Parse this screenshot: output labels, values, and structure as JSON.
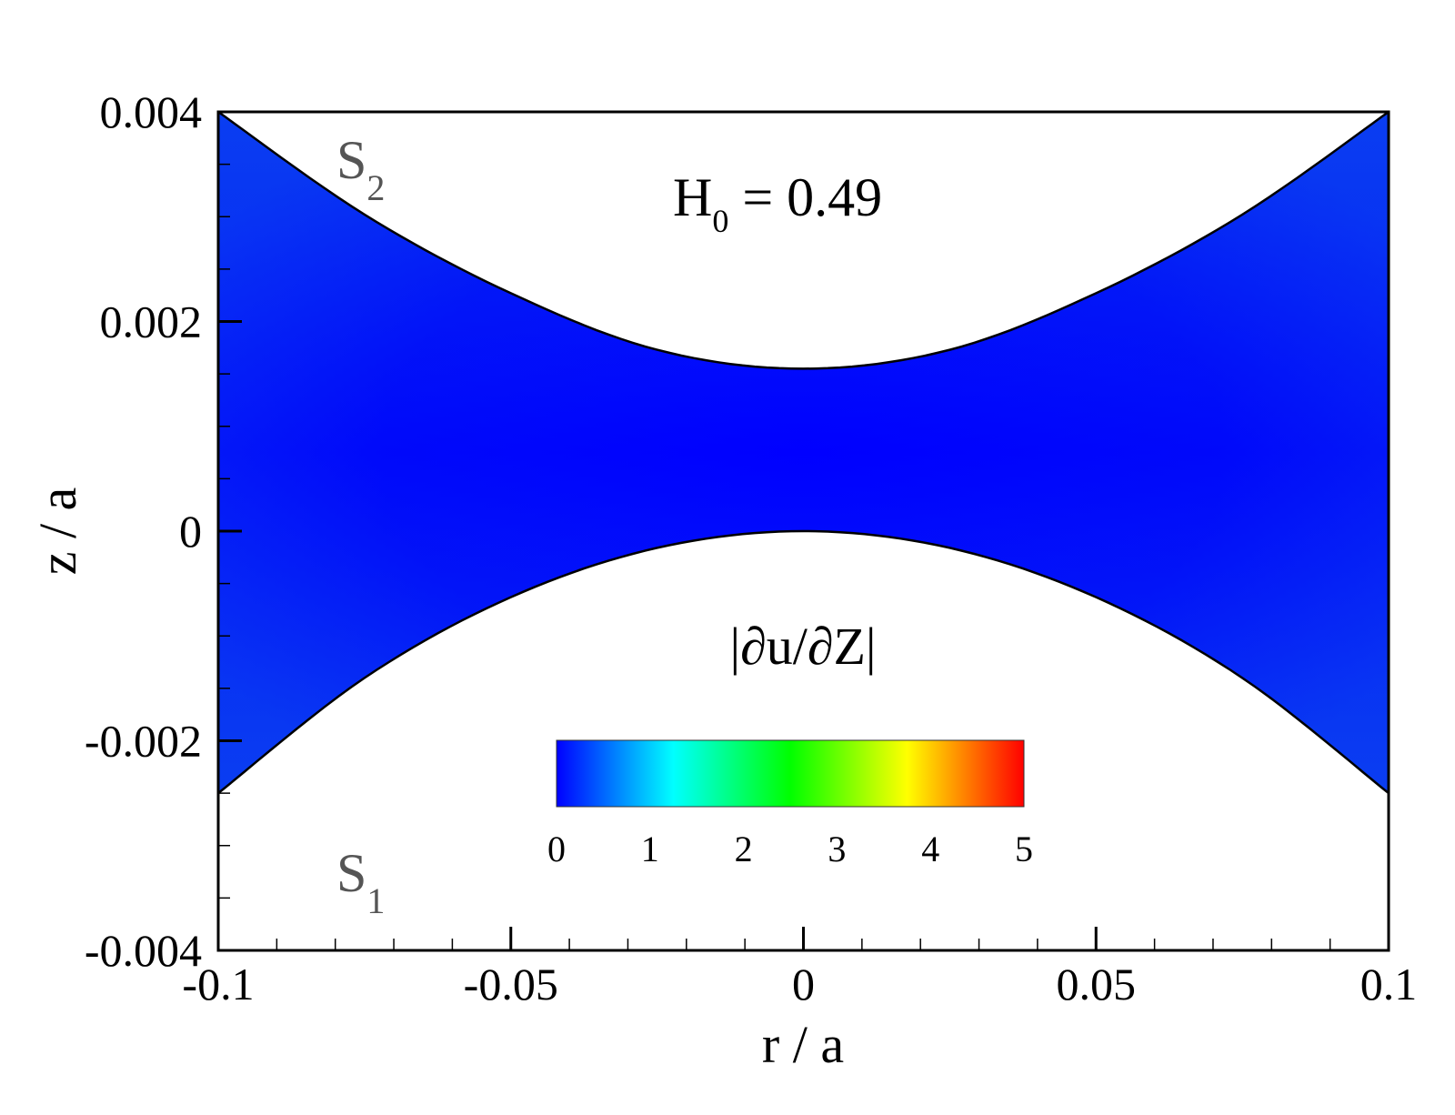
{
  "chart_data": {
    "type": "heatmap",
    "xlabel": "r / a",
    "ylabel": "z / a",
    "xlim": [
      -0.1,
      0.1
    ],
    "ylim": [
      -0.004,
      0.004
    ],
    "x_ticks": [
      -0.1,
      -0.05,
      0,
      0.05,
      0.1
    ],
    "x_tick_labels": [
      "-0.1",
      "-0.05",
      "0",
      "0.05",
      "0.1"
    ],
    "y_ticks": [
      -0.004,
      -0.002,
      0,
      0.002,
      0.004
    ],
    "y_tick_labels": [
      "-0.004",
      "-0.002",
      "0",
      "0.002",
      "0.004"
    ],
    "annotation": {
      "main": "H",
      "sub": "0",
      "rest": " = 0.49"
    },
    "surfaces": [
      {
        "main": "S",
        "sub": "2"
      },
      {
        "main": "S",
        "sub": "1"
      }
    ],
    "lower_surface": {
      "r": [
        -0.1,
        -0.075,
        -0.05,
        -0.025,
        0,
        0.025,
        0.05,
        0.075,
        0.1
      ],
      "z": [
        -0.0025,
        -0.0014,
        -0.00063,
        -0.00016,
        0,
        -0.00016,
        -0.00063,
        -0.0014,
        -0.0025
      ]
    },
    "upper_surface": {
      "r": [
        -0.1,
        -0.075,
        -0.05,
        -0.025,
        0,
        0.025,
        0.05,
        0.075,
        0.1
      ],
      "z": [
        0.004,
        0.00302,
        0.00227,
        0.00173,
        0.00155,
        0.00173,
        0.00227,
        0.00302,
        0.004
      ]
    },
    "field": {
      "name": "|∂u/∂Z|",
      "range": [
        0,
        5
      ],
      "observed_max": 0.4
    },
    "colorbar": {
      "title": "|∂u/∂Z|",
      "range": [
        0,
        5
      ],
      "ticks": [
        0,
        1,
        2,
        3,
        4,
        5
      ],
      "tick_labels": [
        "0",
        "1",
        "2",
        "3",
        "4",
        "5"
      ],
      "stops": [
        {
          "value": 0,
          "color": "#0000ff"
        },
        {
          "value": 1.25,
          "color": "#00ffff"
        },
        {
          "value": 2.5,
          "color": "#00ff00"
        },
        {
          "value": 3.75,
          "color": "#ffff00"
        },
        {
          "value": 5,
          "color": "#ff0000"
        }
      ]
    },
    "grid": false
  }
}
